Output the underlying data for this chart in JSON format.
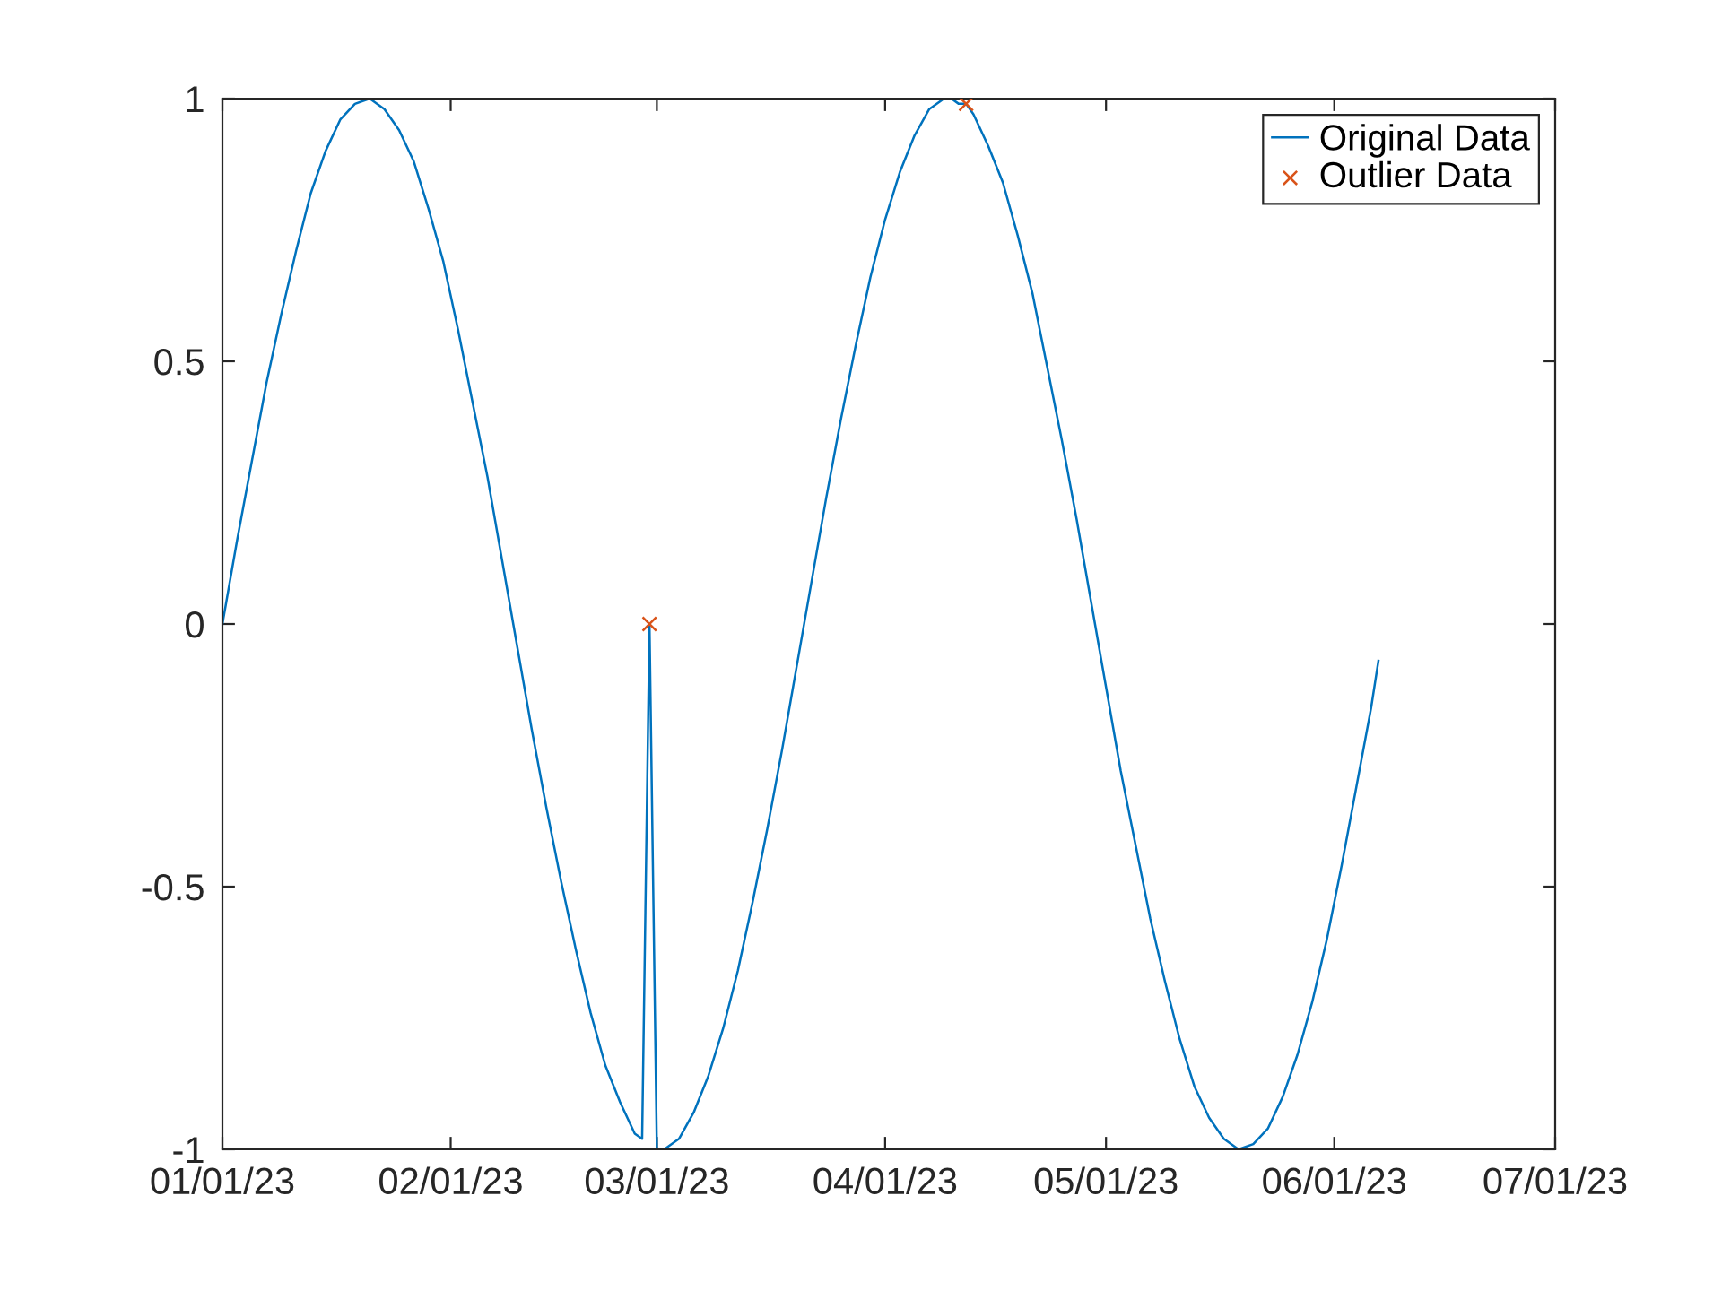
{
  "chart_data": {
    "type": "line",
    "xlim": [
      "2023-01-01",
      "2023-07-01"
    ],
    "xticks": [
      {
        "value": "2023-01-01",
        "label": "01/01/23"
      },
      {
        "value": "2023-02-01",
        "label": "02/01/23"
      },
      {
        "value": "2023-03-01",
        "label": "03/01/23"
      },
      {
        "value": "2023-04-01",
        "label": "04/01/23"
      },
      {
        "value": "2023-05-01",
        "label": "05/01/23"
      },
      {
        "value": "2023-06-01",
        "label": "06/01/23"
      },
      {
        "value": "2023-07-01",
        "label": "07/01/23"
      }
    ],
    "ylim": [
      -1,
      1
    ],
    "yticks": [
      -1,
      -0.5,
      0,
      0.5,
      1
    ],
    "grid": false,
    "legend": "top right",
    "series": [
      {
        "name": "Original Data",
        "type": "line",
        "color": "#0072bd",
        "marker": "none",
        "line_style": "solid",
        "x": [
          "2023-01-01",
          "2023-01-03",
          "2023-01-05",
          "2023-01-07",
          "2023-01-09",
          "2023-01-11",
          "2023-01-13",
          "2023-01-15",
          "2023-01-17",
          "2023-01-19",
          "2023-01-21",
          "2023-01-23",
          "2023-01-25",
          "2023-01-27",
          "2023-01-29",
          "2023-01-31",
          "2023-02-02",
          "2023-02-04",
          "2023-02-06",
          "2023-02-08",
          "2023-02-10",
          "2023-02-12",
          "2023-02-14",
          "2023-02-16",
          "2023-02-18",
          "2023-02-20",
          "2023-02-22",
          "2023-02-24",
          "2023-02-26",
          "2023-02-27",
          "2023-02-28",
          "2023-03-01",
          "2023-03-02",
          "2023-03-04",
          "2023-03-06",
          "2023-03-08",
          "2023-03-10",
          "2023-03-12",
          "2023-03-14",
          "2023-03-16",
          "2023-03-18",
          "2023-03-20",
          "2023-03-22",
          "2023-03-24",
          "2023-03-26",
          "2023-03-28",
          "2023-03-30",
          "2023-04-01",
          "2023-04-03",
          "2023-04-05",
          "2023-04-07",
          "2023-04-09",
          "2023-04-10",
          "2023-04-11",
          "2023-04-12",
          "2023-04-13",
          "2023-04-15",
          "2023-04-17",
          "2023-04-19",
          "2023-04-21",
          "2023-04-23",
          "2023-04-25",
          "2023-04-27",
          "2023-04-29",
          "2023-05-01",
          "2023-05-03",
          "2023-05-05",
          "2023-05-07",
          "2023-05-09",
          "2023-05-11",
          "2023-05-13",
          "2023-05-15",
          "2023-05-17",
          "2023-05-19",
          "2023-05-21",
          "2023-05-23",
          "2023-05-25",
          "2023-05-27",
          "2023-05-29",
          "2023-05-31",
          "2023-06-02",
          "2023-06-04",
          "2023-06-06",
          "2023-06-07"
        ],
        "values": [
          0,
          0.16,
          0.31,
          0.46,
          0.59,
          0.71,
          0.82,
          0.9,
          0.96,
          0.99,
          1.0,
          0.98,
          0.94,
          0.88,
          0.79,
          0.69,
          0.56,
          0.42,
          0.28,
          0.12,
          -0.04,
          -0.2,
          -0.35,
          -0.49,
          -0.62,
          -0.74,
          -0.84,
          -0.91,
          -0.97,
          -0.98,
          0,
          -1.0,
          -1.0,
          -0.98,
          -0.93,
          -0.86,
          -0.77,
          -0.66,
          -0.53,
          -0.39,
          -0.24,
          -0.08,
          0.08,
          0.24,
          0.39,
          0.53,
          0.66,
          0.77,
          0.86,
          0.93,
          0.98,
          1.0,
          1.0,
          0.99,
          0.99,
          0.97,
          0.91,
          0.84,
          0.74,
          0.63,
          0.49,
          0.35,
          0.2,
          0.04,
          -0.12,
          -0.28,
          -0.42,
          -0.56,
          -0.68,
          -0.79,
          -0.88,
          -0.94,
          -0.98,
          -1.0,
          -0.99,
          -0.96,
          -0.9,
          -0.82,
          -0.72,
          -0.6,
          -0.46,
          -0.31,
          -0.16,
          -0.07
        ]
      },
      {
        "name": "Outlier Data",
        "type": "scatter",
        "color": "#d95319",
        "marker": "cross",
        "x": [
          "2023-02-28",
          "2023-04-12"
        ],
        "values": [
          0,
          0.99
        ]
      }
    ]
  }
}
